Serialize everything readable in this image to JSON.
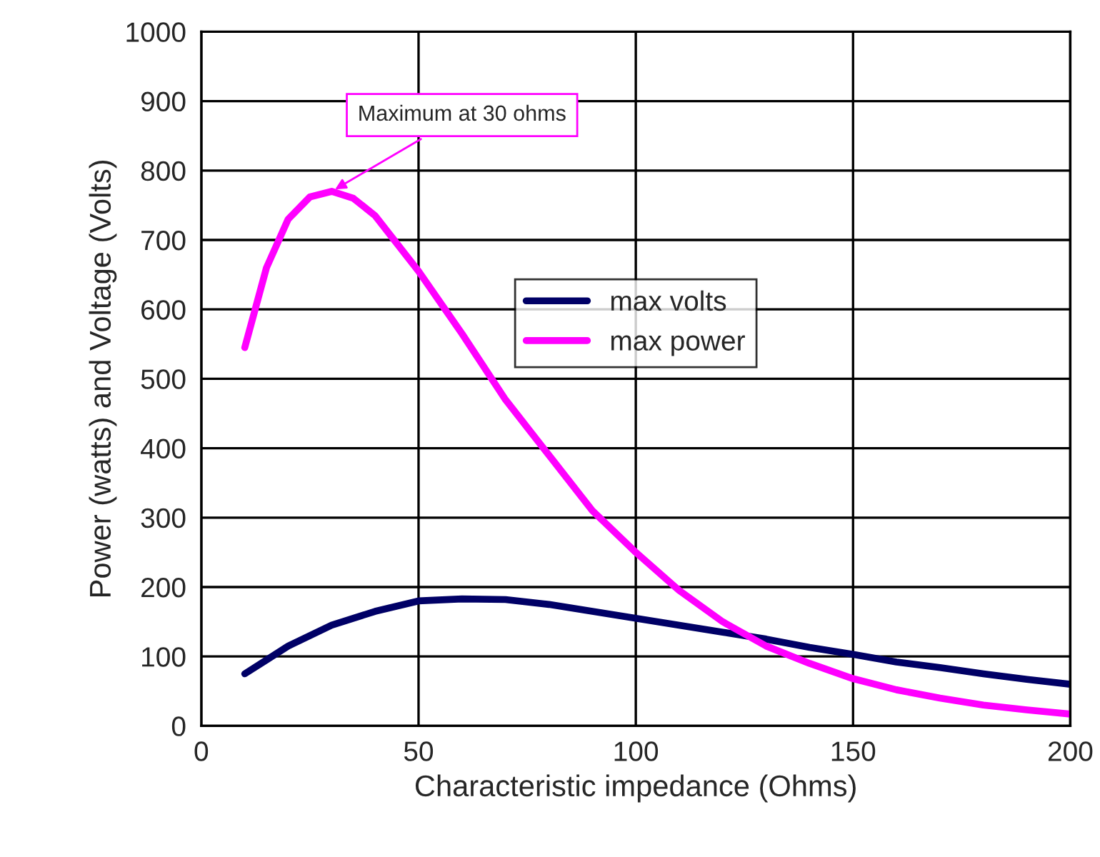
{
  "chart_data": {
    "type": "line",
    "xlabel": "Characteristic impedance (Ohms)",
    "ylabel": "Power (watts) and Voltage (Volts)",
    "series": [
      {
        "name": "max volts",
        "color": "#000066",
        "x": [
          10,
          15,
          20,
          30,
          40,
          50,
          60,
          70,
          80,
          90,
          100,
          110,
          120,
          130,
          140,
          150,
          160,
          170,
          180,
          190,
          200
        ],
        "values": [
          75,
          95,
          115,
          145,
          165,
          180,
          183,
          182,
          175,
          165,
          155,
          145,
          135,
          125,
          113,
          103,
          92,
          84,
          75,
          67,
          60
        ]
      },
      {
        "name": "max power",
        "color": "#ff00ff",
        "x": [
          10,
          15,
          20,
          25,
          30,
          35,
          40,
          50,
          60,
          70,
          80,
          90,
          100,
          110,
          120,
          130,
          140,
          150,
          160,
          170,
          180,
          190,
          200
        ],
        "values": [
          545,
          660,
          730,
          762,
          770,
          760,
          735,
          655,
          565,
          470,
          390,
          310,
          250,
          195,
          150,
          115,
          90,
          68,
          52,
          40,
          30,
          23,
          17
        ]
      }
    ],
    "annotations": [
      {
        "text": "Maximum at 30 ohms",
        "x": 30,
        "y": 770
      }
    ],
    "xlim": [
      0,
      200
    ],
    "xticks": [
      0,
      50,
      100,
      150,
      200
    ],
    "ylim": [
      0,
      1000
    ],
    "yticks": [
      0,
      100,
      200,
      300,
      400,
      500,
      600,
      700,
      800,
      900,
      1000
    ],
    "grid": true,
    "legend": "upper center",
    "marker": "none",
    "line_style": "solid"
  }
}
